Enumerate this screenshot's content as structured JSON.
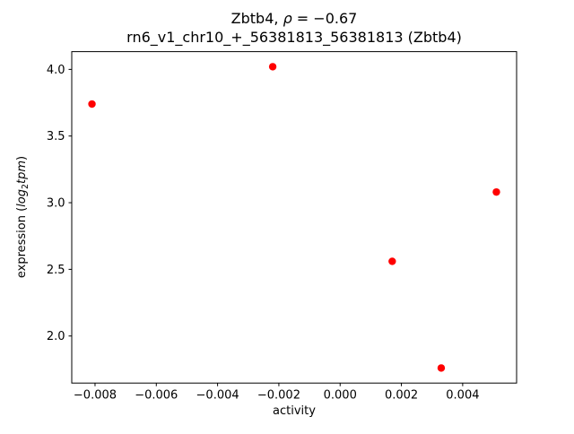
{
  "chart_data": {
    "type": "scatter",
    "title_line1": {
      "prefix": "Zbtb4, ",
      "rho": "ρ",
      "suffix": " = −0.67"
    },
    "title_line2": "rn6_v1_chr10_+_56381813_56381813 (Zbtb4)",
    "xlabel": "activity",
    "ylabel": {
      "prefix": "expression (",
      "log_word": "log",
      "log_sub": "2",
      "tpm_word": "tpm",
      "suffix": ")"
    },
    "rho": -0.67,
    "xlim": [
      -0.00876,
      0.00576
    ],
    "ylim": [
      1.647,
      4.133
    ],
    "xticks": {
      "values": [
        -0.008,
        -0.006,
        -0.004,
        -0.002,
        0.0,
        0.002,
        0.004
      ],
      "labels": [
        "−0.008",
        "−0.006",
        "−0.004",
        "−0.002",
        "0.000",
        "0.002",
        "0.004"
      ]
    },
    "yticks": {
      "values": [
        2.0,
        2.5,
        3.0,
        3.5,
        4.0
      ],
      "labels": [
        "2.0",
        "2.5",
        "3.0",
        "3.5",
        "4.0"
      ]
    },
    "points": [
      {
        "x": -0.0081,
        "y": 3.74
      },
      {
        "x": -0.0022,
        "y": 4.02
      },
      {
        "x": 0.0017,
        "y": 2.56
      },
      {
        "x": 0.0033,
        "y": 1.76
      },
      {
        "x": 0.0051,
        "y": 3.08
      }
    ],
    "point_color": "#ff0000",
    "marker_radius": 4.2,
    "grid": false,
    "legend": null
  }
}
